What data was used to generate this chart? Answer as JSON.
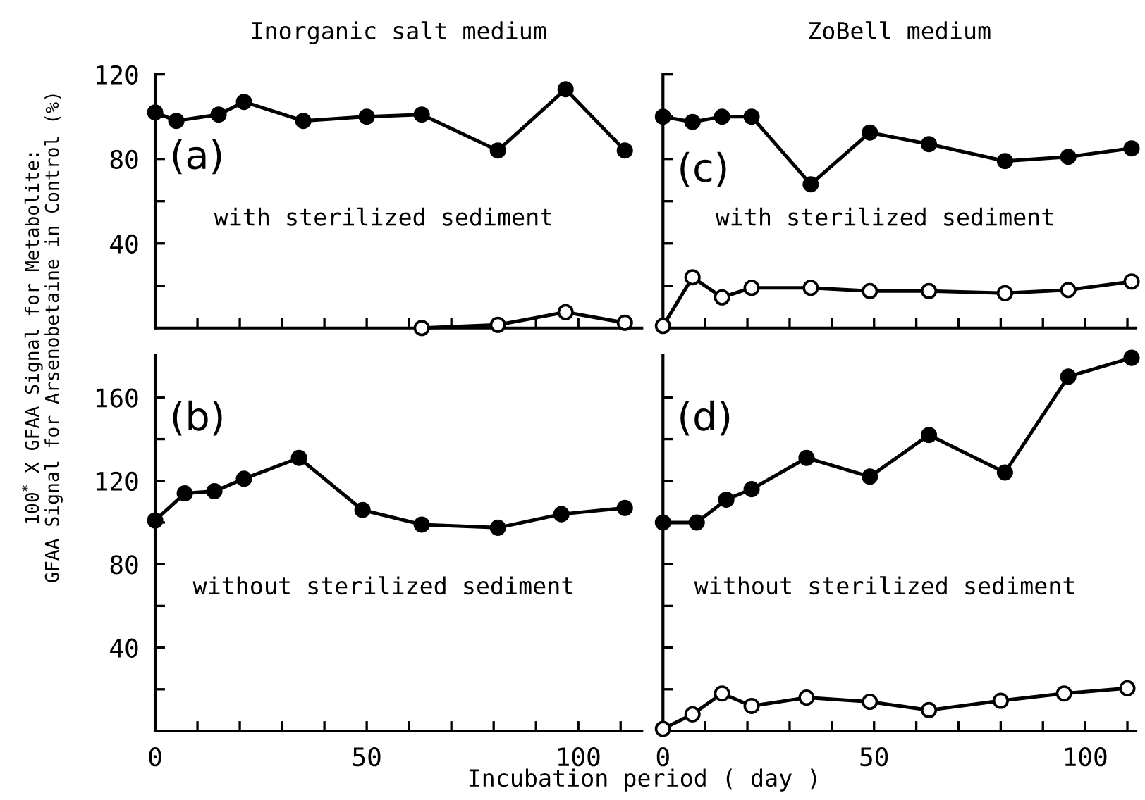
{
  "chart_data": [
    {
      "type": "line",
      "title": "Inorganic salt medium",
      "xlim": [
        0,
        115
      ],
      "ylim": [
        0,
        120
      ],
      "xticks": [
        0,
        {
          "value": 10,
          "label": null
        },
        {
          "value": 20,
          "label": null
        },
        {
          "value": 30,
          "label": null
        },
        {
          "value": 40,
          "label": null
        },
        {
          "value": 50,
          "label": null
        },
        {
          "value": 60,
          "label": null
        },
        {
          "value": 70,
          "label": null
        },
        {
          "value": 80,
          "label": null
        },
        {
          "value": 90,
          "label": null
        },
        {
          "value": 100,
          "label": null
        },
        {
          "value": 110,
          "label": null
        }
      ],
      "yticks": [
        {
          "value": 20,
          "label": null
        },
        40,
        {
          "value": 60,
          "label": null
        },
        80,
        {
          "value": 100,
          "label": null
        },
        120
      ],
      "tick_labels": "y",
      "marker": "circle",
      "annotations": [
        "(a)",
        "with sterilized sediment"
      ],
      "series": [
        {
          "color": "#000000",
          "x": [
            0,
            5,
            15,
            21,
            35,
            50,
            63,
            81,
            97,
            111
          ],
          "values": [
            102,
            98,
            101,
            107,
            98,
            100,
            101,
            84,
            113,
            84
          ]
        },
        {
          "color": "#000000",
          "x": [
            63,
            81,
            97,
            111
          ],
          "values": [
            0,
            1.5,
            7.5,
            2.5
          ]
        }
      ]
    },
    {
      "type": "line",
      "xlim": [
        0,
        115
      ],
      "ylim": [
        0,
        180
      ],
      "xticks": [
        0,
        {
          "value": 10,
          "label": null
        },
        {
          "value": 20,
          "label": null
        },
        {
          "value": 30,
          "label": null
        },
        {
          "value": 40,
          "label": null
        },
        50,
        {
          "value": 60,
          "label": null
        },
        {
          "value": 70,
          "label": null
        },
        {
          "value": 80,
          "label": null
        },
        {
          "value": 90,
          "label": null
        },
        100,
        {
          "value": 110,
          "label": null
        }
      ],
      "yticks": [
        {
          "value": 20,
          "label": null
        },
        40,
        {
          "value": 60,
          "label": null
        },
        80,
        {
          "value": 100,
          "label": null
        },
        120,
        {
          "value": 140,
          "label": null
        },
        160
      ],
      "ylabel": "100$^{*}$ X GFAA Signal for Metabolite:\nGFAA Signal for Arsenobetaine in Control (%)",
      "marker": "circle",
      "annotations": [
        "(b)",
        "without sterilized sediment"
      ],
      "series": [
        {
          "color": "#000000",
          "x": [
            0,
            7,
            14,
            21,
            34,
            49,
            63,
            81,
            96,
            111
          ],
          "values": [
            101,
            114,
            115,
            121,
            131,
            106,
            99,
            97.5,
            104,
            107
          ]
        }
      ]
    },
    {
      "type": "line",
      "title": "ZoBell medium",
      "xlim": [
        0,
        112
      ],
      "ylim": [
        0,
        120
      ],
      "xticks": [
        0,
        {
          "value": 10,
          "label": null
        },
        {
          "value": 20,
          "label": null
        },
        {
          "value": 30,
          "label": null
        },
        {
          "value": 40,
          "label": null
        },
        {
          "value": 50,
          "label": null
        },
        {
          "value": 60,
          "label": null
        },
        {
          "value": 70,
          "label": null
        },
        {
          "value": 80,
          "label": null
        },
        {
          "value": 90,
          "label": null
        },
        {
          "value": 100,
          "label": null
        },
        {
          "value": 110,
          "label": null
        }
      ],
      "yticks": [
        {
          "value": 20,
          "label": null
        },
        {
          "value": 40,
          "label": null
        },
        {
          "value": 60,
          "label": null
        },
        {
          "value": 80,
          "label": null
        },
        {
          "value": 100,
          "label": null
        },
        {
          "value": 120,
          "label": null
        }
      ],
      "tick_labels": false,
      "marker": "circle",
      "annotations": [
        "(c)",
        "with sterilized sediment"
      ],
      "series": [
        {
          "color": "#000000",
          "x": [
            0,
            7,
            14,
            21,
            35,
            49,
            63,
            81,
            96,
            111
          ],
          "values": [
            100,
            97.5,
            100,
            100,
            68,
            92.5,
            87,
            79,
            81,
            85
          ]
        },
        {
          "color": "#000000",
          "x": [
            0,
            7,
            14,
            21,
            35,
            49,
            63,
            81,
            96,
            111
          ],
          "values": [
            1,
            24,
            14.5,
            19,
            19,
            17.5,
            17.5,
            16.5,
            18,
            22
          ]
        }
      ]
    },
    {
      "type": "line",
      "xlim": [
        0,
        112
      ],
      "ylim": [
        0,
        180
      ],
      "xticks": [
        0,
        {
          "value": 10,
          "label": null
        },
        {
          "value": 20,
          "label": null
        },
        {
          "value": 30,
          "label": null
        },
        {
          "value": 40,
          "label": null
        },
        50,
        {
          "value": 60,
          "label": null
        },
        {
          "value": 70,
          "label": null
        },
        {
          "value": 80,
          "label": null
        },
        {
          "value": 90,
          "label": null
        },
        100,
        {
          "value": 110,
          "label": null
        }
      ],
      "yticks": [
        {
          "value": 20,
          "label": null
        },
        {
          "value": 40,
          "label": null
        },
        {
          "value": 60,
          "label": null
        },
        {
          "value": 80,
          "label": null
        },
        {
          "value": 100,
          "label": null
        },
        {
          "value": 120,
          "label": null
        },
        {
          "value": 140,
          "label": null
        },
        {
          "value": 160,
          "label": null
        }
      ],
      "tick_labels": "x",
      "xlabel": "Incubation period ( day )",
      "marker": "circle",
      "annotations": [
        "(d)",
        "without sterilized sediment"
      ],
      "series": [
        {
          "color": "#000000",
          "x": [
            0,
            8,
            15,
            21,
            34,
            49,
            63,
            81,
            96,
            111
          ],
          "values": [
            100,
            100,
            111,
            116,
            131,
            122,
            142,
            124,
            170,
            179
          ]
        },
        {
          "color": "#000000",
          "x": [
            0,
            7,
            14,
            21,
            34,
            49,
            63,
            80,
            95,
            110
          ],
          "values": [
            1,
            8,
            18,
            12,
            16,
            14,
            10,
            14.5,
            18,
            20.5
          ]
        }
      ]
    }
  ]
}
